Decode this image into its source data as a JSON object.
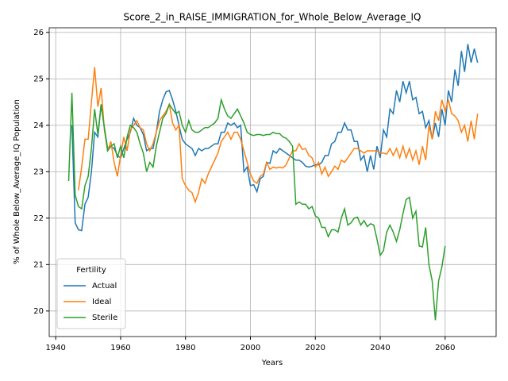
{
  "chart_data": {
    "type": "line",
    "title": "Score_2_in_RAISE_IMMIGRATION_for_Whole_Below_Average_IQ",
    "x_label": "Years",
    "y_label": "% of Whole Below_Average_IQ Population",
    "legend_title": "Fertility",
    "legend": "lower left",
    "grid": true,
    "xlim": [
      1938,
      2075.7
    ],
    "ylim": [
      19.45,
      26.1
    ],
    "xticks": [
      1940,
      1960,
      1980,
      2000,
      2020,
      2040,
      2060
    ],
    "yticks": [
      20,
      21,
      22,
      23,
      24,
      25,
      26
    ],
    "x": [
      1944,
      1945,
      1946,
      1947,
      1948,
      1949,
      1950,
      1951,
      1952,
      1953,
      1954,
      1955,
      1956,
      1957,
      1958,
      1959,
      1960,
      1961,
      1962,
      1963,
      1964,
      1965,
      1966,
      1967,
      1968,
      1969,
      1970,
      1971,
      1972,
      1973,
      1974,
      1975,
      1976,
      1977,
      1978,
      1979,
      1980,
      1981,
      1982,
      1983,
      1984,
      1985,
      1986,
      1987,
      1988,
      1989,
      1990,
      1991,
      1992,
      1993,
      1994,
      1995,
      1996,
      1997,
      1998,
      1999,
      2000,
      2001,
      2002,
      2003,
      2004,
      2005,
      2006,
      2007,
      2008,
      2009,
      2010,
      2011,
      2012,
      2013,
      2014,
      2015,
      2016,
      2017,
      2018,
      2019,
      2020,
      2021,
      2022,
      2023,
      2024,
      2025,
      2026,
      2027,
      2028,
      2029,
      2030,
      2031,
      2032,
      2033,
      2034,
      2035,
      2036,
      2037,
      2038,
      2039,
      2040,
      2041,
      2042,
      2043,
      2044,
      2045,
      2046,
      2047,
      2048,
      2049,
      2050,
      2051,
      2052,
      2053,
      2054,
      2055,
      2056,
      2057,
      2058,
      2059,
      2060,
      2061,
      2062,
      2063,
      2064,
      2065,
      2066,
      2067,
      2068,
      2069,
      2070
    ],
    "series": [
      {
        "name": "Actual",
        "color": "#1f77b4",
        "values": [
          null,
          24.0,
          21.9,
          21.75,
          21.73,
          22.3,
          22.45,
          23.0,
          23.85,
          23.75,
          24.45,
          23.95,
          23.5,
          23.55,
          23.5,
          23.35,
          23.3,
          23.5,
          23.7,
          23.85,
          24.15,
          24.0,
          23.95,
          23.8,
          23.45,
          23.5,
          23.5,
          23.85,
          24.3,
          24.55,
          24.72,
          24.75,
          24.55,
          24.3,
          24.0,
          23.7,
          23.6,
          23.55,
          23.5,
          23.35,
          23.5,
          23.45,
          23.5,
          23.5,
          23.55,
          23.6,
          23.6,
          23.85,
          23.85,
          24.05,
          24.0,
          24.05,
          23.95,
          24.0,
          23.0,
          23.1,
          22.7,
          22.72,
          22.57,
          22.85,
          22.9,
          23.2,
          23.18,
          23.45,
          23.4,
          23.5,
          23.45,
          23.4,
          23.35,
          23.3,
          23.25,
          23.25,
          23.2,
          23.12,
          23.1,
          23.12,
          23.15,
          23.15,
          23.2,
          23.35,
          23.35,
          23.6,
          23.65,
          23.85,
          23.85,
          24.05,
          23.9,
          23.9,
          23.65,
          23.65,
          23.25,
          23.35,
          23.0,
          23.35,
          23.05,
          23.55,
          23.3,
          23.9,
          23.75,
          24.35,
          24.25,
          24.75,
          24.5,
          24.95,
          24.7,
          24.95,
          24.55,
          24.6,
          24.25,
          24.3,
          23.95,
          24.1,
          23.7,
          24.05,
          23.75,
          24.35,
          24.0,
          24.75,
          24.5,
          25.2,
          24.85,
          25.6,
          25.15,
          25.75,
          25.35,
          25.65,
          25.35
        ]
      },
      {
        "name": "Ideal",
        "color": "#ff7f0e",
        "values": [
          null,
          null,
          null,
          22.6,
          23.1,
          23.7,
          23.7,
          24.5,
          25.25,
          24.4,
          24.8,
          23.9,
          23.45,
          23.65,
          23.2,
          22.9,
          23.35,
          23.75,
          23.45,
          23.9,
          24.0,
          24.1,
          23.95,
          23.9,
          23.6,
          23.45,
          23.6,
          23.85,
          24.1,
          24.2,
          24.3,
          24.45,
          24.05,
          23.9,
          24.0,
          22.85,
          22.7,
          22.6,
          22.55,
          22.35,
          22.55,
          22.85,
          22.75,
          22.95,
          23.1,
          23.25,
          23.4,
          23.65,
          23.75,
          23.85,
          23.7,
          23.85,
          23.85,
          23.7,
          23.45,
          23.2,
          22.95,
          22.8,
          22.75,
          22.9,
          22.95,
          23.2,
          23.05,
          23.1,
          23.08,
          23.1,
          23.08,
          23.15,
          23.3,
          23.45,
          23.45,
          23.6,
          23.48,
          23.5,
          23.35,
          23.3,
          23.1,
          23.2,
          22.95,
          23.1,
          22.9,
          23.0,
          23.12,
          23.05,
          23.25,
          23.2,
          23.3,
          23.4,
          23.5,
          23.5,
          23.45,
          23.4,
          23.45,
          23.45,
          23.45,
          23.45,
          23.4,
          23.4,
          23.38,
          23.5,
          23.35,
          23.5,
          23.3,
          23.55,
          23.3,
          23.5,
          23.25,
          23.45,
          23.15,
          23.55,
          23.25,
          24.0,
          23.7,
          24.3,
          24.1,
          24.55,
          24.3,
          24.55,
          24.25,
          24.2,
          24.1,
          23.85,
          24.0,
          23.65,
          24.1,
          23.7,
          24.25
        ]
      },
      {
        "name": "Sterile",
        "color": "#2ca02c",
        "values": [
          22.8,
          24.7,
          22.5,
          22.25,
          22.2,
          22.7,
          22.9,
          23.5,
          24.35,
          23.8,
          24.45,
          23.95,
          23.45,
          23.55,
          23.6,
          23.3,
          23.55,
          23.3,
          23.75,
          24.0,
          23.95,
          23.85,
          23.6,
          23.4,
          23.0,
          23.2,
          23.1,
          23.55,
          23.85,
          24.15,
          24.25,
          24.45,
          24.35,
          24.25,
          24.3,
          24.0,
          23.85,
          24.1,
          23.9,
          23.85,
          23.85,
          23.9,
          23.95,
          23.95,
          24.0,
          24.05,
          24.15,
          24.55,
          24.35,
          24.2,
          24.15,
          24.25,
          24.35,
          24.2,
          24.05,
          23.85,
          23.8,
          23.78,
          23.8,
          23.8,
          23.78,
          23.8,
          23.8,
          23.85,
          23.82,
          23.82,
          23.75,
          23.72,
          23.65,
          23.55,
          22.3,
          22.35,
          22.3,
          22.3,
          22.2,
          22.25,
          22.05,
          22.0,
          21.8,
          21.8,
          21.6,
          21.75,
          21.75,
          21.7,
          22.0,
          22.2,
          21.85,
          21.9,
          22.0,
          22.02,
          21.85,
          21.95,
          21.82,
          21.88,
          21.85,
          21.55,
          21.2,
          21.3,
          21.7,
          21.85,
          21.7,
          21.5,
          21.75,
          22.1,
          22.4,
          22.45,
          22.0,
          22.15,
          21.4,
          21.38,
          21.8,
          21.0,
          20.65,
          19.8,
          20.65,
          20.95,
          21.4,
          null,
          null,
          null,
          null,
          null,
          null,
          null,
          null,
          null,
          null
        ]
      }
    ]
  }
}
